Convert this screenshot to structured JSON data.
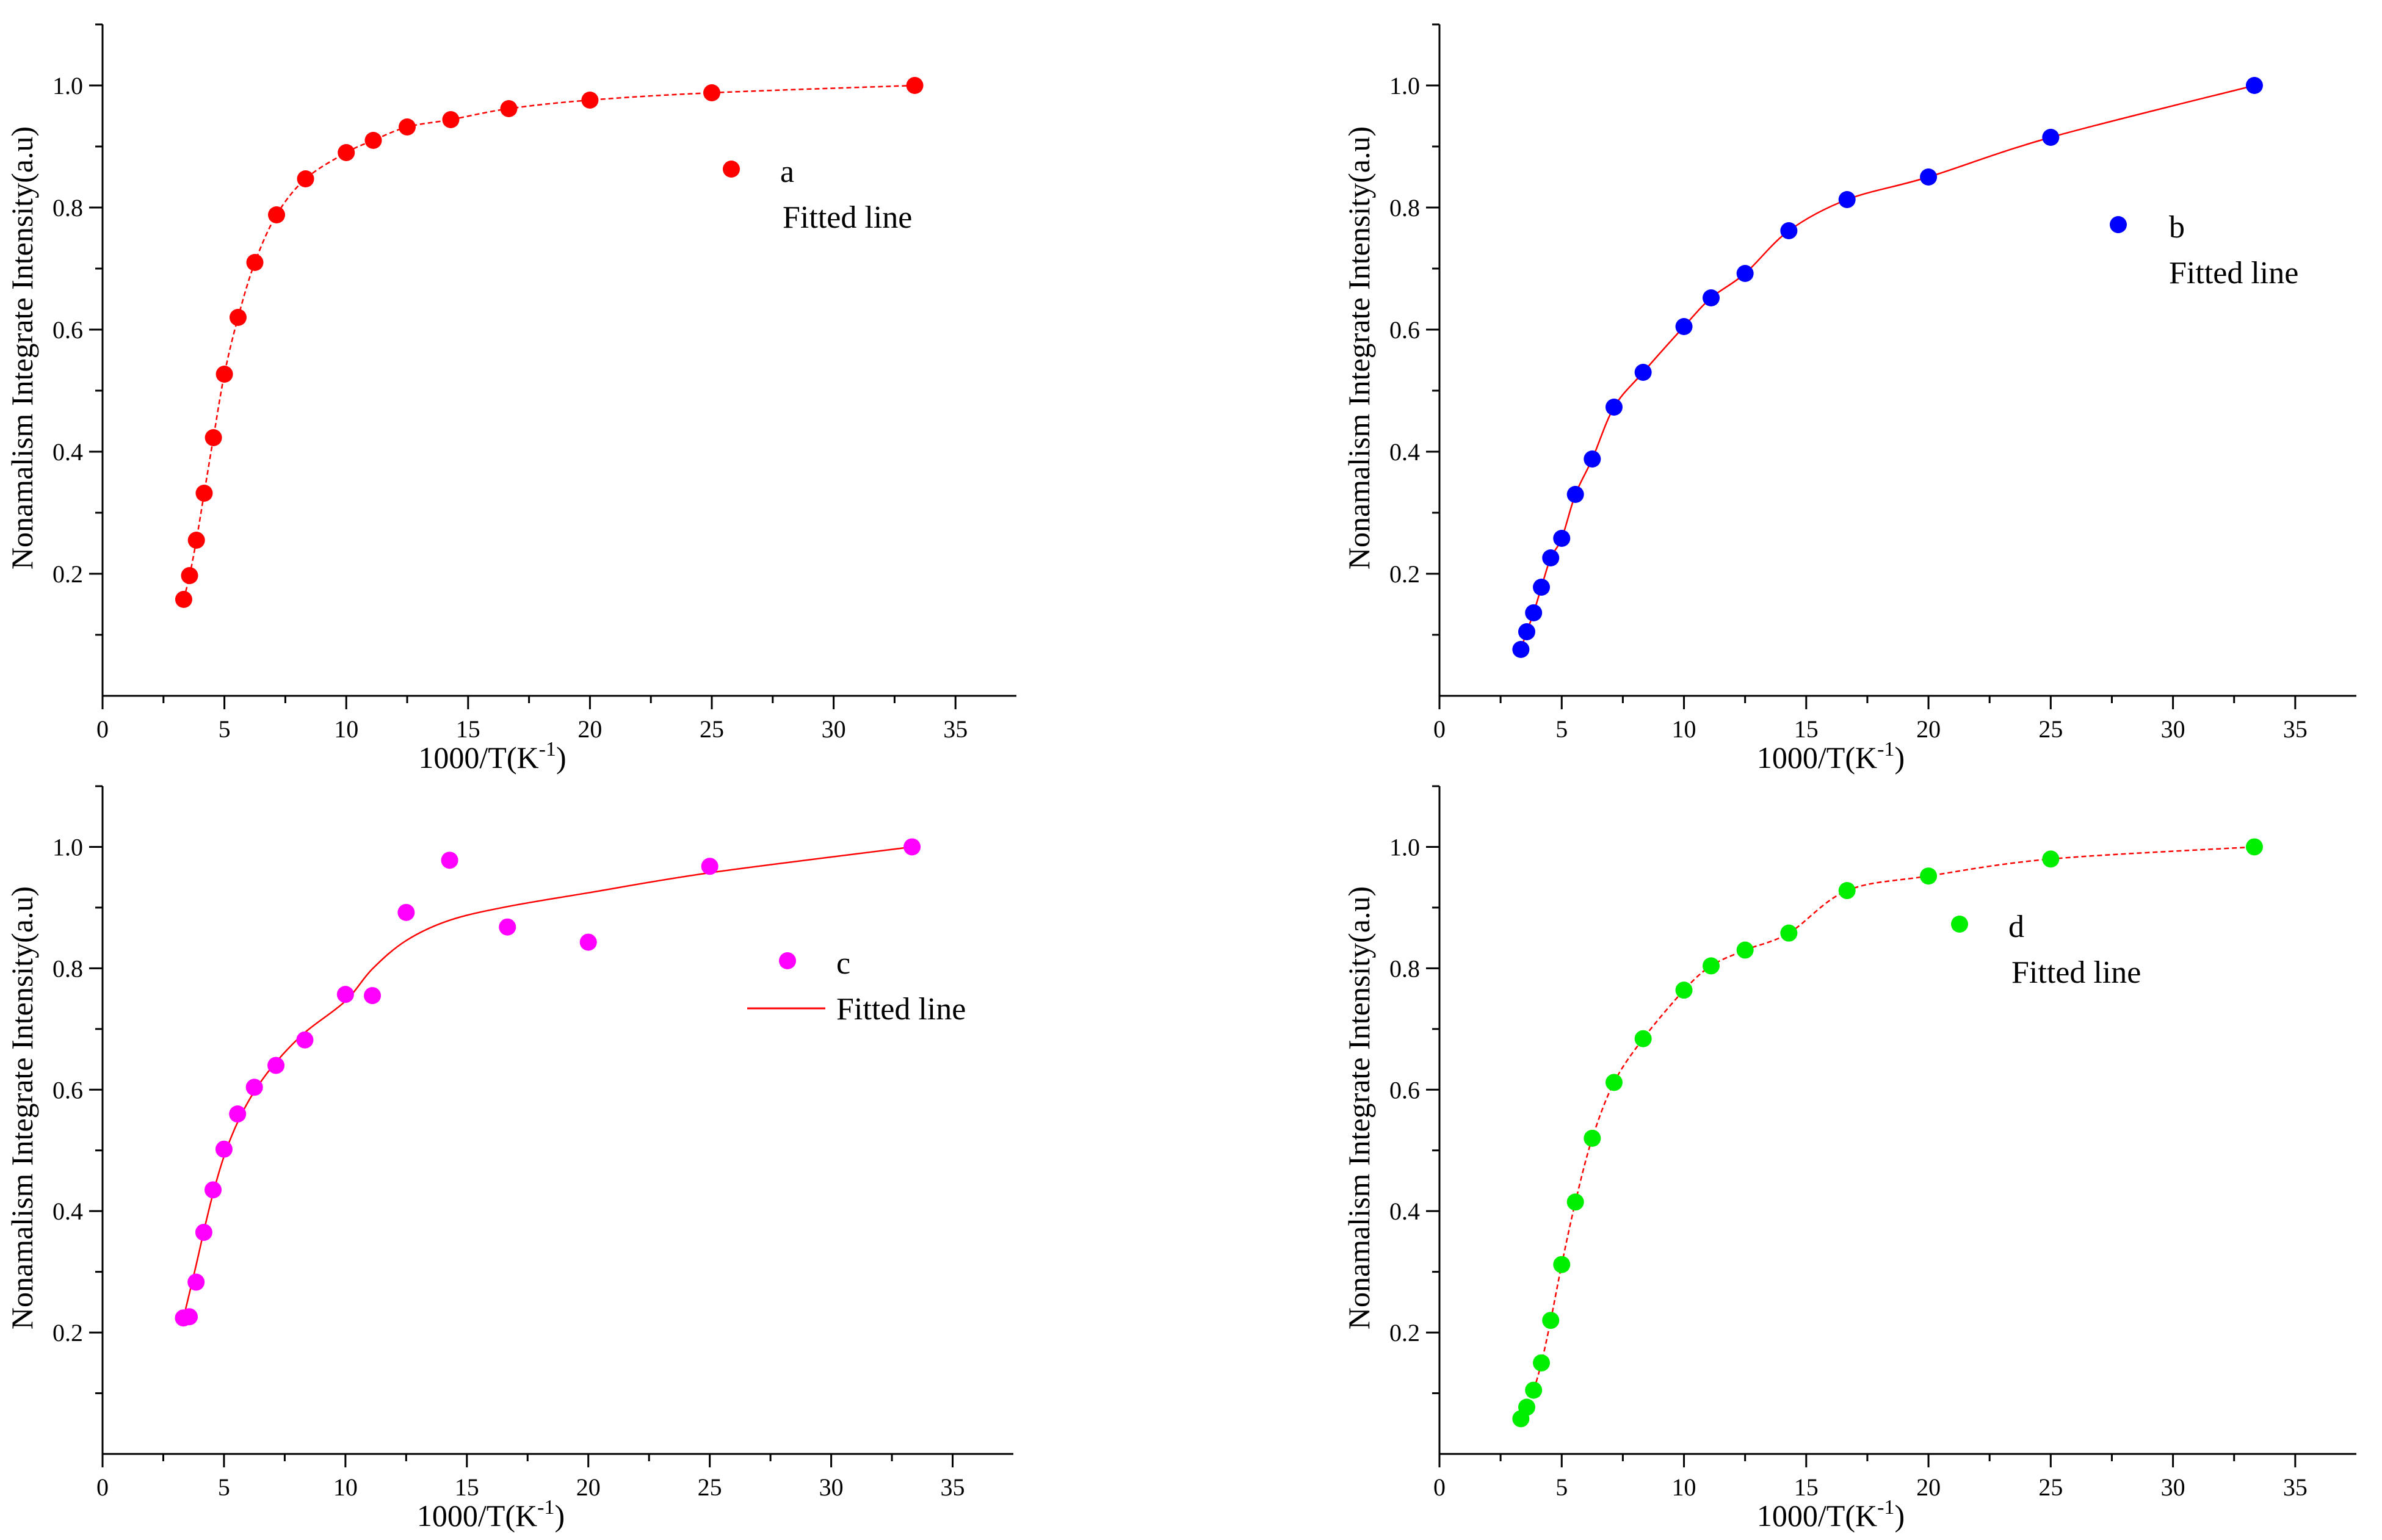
{
  "chart_data": [
    {
      "panel": "a",
      "type": "scatter",
      "xlabel": "1000/T(K",
      "xlabel_sup": "-1",
      "xlabel_close": ")",
      "ylabel": "Nonamalism Integrate Intensity(a.u)",
      "xlim": [
        0,
        37.5
      ],
      "ylim": [
        0,
        1.1
      ],
      "xticks": [
        0,
        5,
        10,
        15,
        20,
        25,
        30,
        35
      ],
      "yticks": [
        0.2,
        0.4,
        0.6,
        0.8,
        1.0
      ],
      "ytick_labels": [
        "0.2",
        "0.4",
        "0.6",
        "0.8",
        "1.0"
      ],
      "marker_color": "#ff0000",
      "fit_color": "#ff0000",
      "fit_style": "dashed",
      "legend": {
        "placement": "center-right",
        "marker_label": "a",
        "line_label": "Fitted line",
        "show_line_sample": false
      },
      "x": [
        3.33,
        3.57,
        3.85,
        4.17,
        4.55,
        5.0,
        5.56,
        6.25,
        7.14,
        8.33,
        10.0,
        11.11,
        12.5,
        14.29,
        16.67,
        20.0,
        25.0,
        33.33
      ],
      "y": [
        0.158,
        0.197,
        0.255,
        0.332,
        0.423,
        0.527,
        0.62,
        0.71,
        0.788,
        0.847,
        0.89,
        0.91,
        0.932,
        0.944,
        0.962,
        0.976,
        0.988,
        1.0
      ]
    },
    {
      "panel": "b",
      "type": "scatter",
      "xlabel": "1000/T(K",
      "xlabel_sup": "-1",
      "xlabel_close": ")",
      "ylabel": "Nonamalism Integrate Intensity(a.u)",
      "xlim": [
        0,
        37.5
      ],
      "ylim": [
        0,
        1.1
      ],
      "xticks": [
        0,
        5,
        10,
        15,
        20,
        25,
        30,
        35
      ],
      "yticks": [
        0.2,
        0.4,
        0.6,
        0.8,
        1.0
      ],
      "ytick_labels": [
        "0.2",
        "0.4",
        "0.6",
        "0.8",
        "1.0"
      ],
      "marker_color": "#0000ff",
      "fit_color": "#ff0000",
      "fit_style": "solid",
      "legend": {
        "placement": "top-right",
        "marker_label": "b",
        "line_label": "Fitted line",
        "show_line_sample": false
      },
      "x": [
        3.33,
        3.57,
        3.85,
        4.17,
        4.55,
        5.0,
        5.56,
        6.25,
        7.14,
        8.33,
        10.0,
        11.11,
        12.5,
        14.29,
        16.67,
        20.0,
        25.0,
        33.33
      ],
      "y": [
        0.076,
        0.105,
        0.136,
        0.178,
        0.226,
        0.258,
        0.33,
        0.388,
        0.473,
        0.53,
        0.605,
        0.652,
        0.692,
        0.762,
        0.813,
        0.85,
        0.915,
        1.0
      ]
    },
    {
      "panel": "c",
      "type": "scatter",
      "xlabel": "1000/T(K",
      "xlabel_sup": "-1",
      "xlabel_close": ")",
      "ylabel": "Nonamalism Integrate Intensity(a.u)",
      "xlim": [
        0,
        37.5
      ],
      "ylim": [
        0,
        1.1
      ],
      "xticks": [
        0,
        5,
        10,
        15,
        20,
        25,
        30,
        35
      ],
      "yticks": [
        0.2,
        0.4,
        0.6,
        0.8,
        1.0
      ],
      "ytick_labels": [
        "0.2",
        "0.4",
        "0.6",
        "0.8",
        "1.0"
      ],
      "marker_color": "#ff00ff",
      "fit_color": "#ff0000",
      "fit_style": "solid",
      "legend": {
        "placement": "center-right",
        "marker_label": "c",
        "line_label": "Fitted line",
        "show_line_sample": true
      },
      "x": [
        3.33,
        3.57,
        3.85,
        4.17,
        4.55,
        5.0,
        5.56,
        6.25,
        7.14,
        8.33,
        10.0,
        11.11,
        12.5,
        14.29,
        16.67,
        20.0,
        25.0,
        33.33
      ],
      "y": [
        0.224,
        0.226,
        0.283,
        0.365,
        0.435,
        0.502,
        0.56,
        0.604,
        0.64,
        0.682,
        0.757,
        0.755,
        0.892,
        0.978,
        0.868,
        0.843,
        0.968,
        1.0
      ]
    },
    {
      "panel": "d",
      "type": "scatter",
      "xlabel": "1000/T(K",
      "xlabel_sup": "-1",
      "xlabel_close": ")",
      "ylabel": "Nonamalism Integrate Intensity(a.u)",
      "xlim": [
        0,
        37.5
      ],
      "ylim": [
        0,
        1.1
      ],
      "xticks": [
        0,
        5,
        10,
        15,
        20,
        25,
        30,
        35
      ],
      "yticks": [
        0.2,
        0.4,
        0.6,
        0.8,
        1.0
      ],
      "ytick_labels": [
        "0.2",
        "0.4",
        "0.6",
        "0.8",
        "1.0"
      ],
      "marker_color": "#00ee00",
      "fit_color": "#ff0000",
      "fit_style": "dashed",
      "legend": {
        "placement": "center-right",
        "marker_label": "d",
        "line_label": "Fitted line",
        "show_line_sample": false
      },
      "x": [
        3.33,
        3.57,
        3.85,
        4.17,
        4.55,
        5.0,
        5.56,
        6.25,
        7.14,
        8.33,
        10.0,
        11.11,
        12.5,
        14.29,
        16.67,
        20.0,
        25.0,
        33.33
      ],
      "y": [
        0.058,
        0.077,
        0.105,
        0.15,
        0.22,
        0.312,
        0.415,
        0.52,
        0.612,
        0.684,
        0.764,
        0.804,
        0.83,
        0.858,
        0.928,
        0.952,
        0.98,
        1.0
      ]
    }
  ]
}
